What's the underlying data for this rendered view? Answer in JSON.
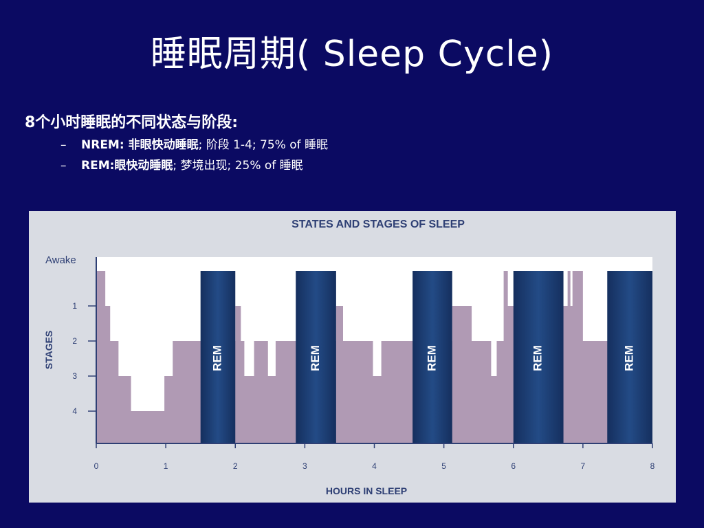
{
  "slide": {
    "title": "睡眠周期( Sleep Cycle)",
    "subtitle": "8个小时睡眠的不同状态与阶段:",
    "bullets": [
      {
        "dash": "–",
        "bold": "NREM: 非眼快动睡眠",
        "rest": "; 阶段 1-4; 75% of 睡眠"
      },
      {
        "dash": "–",
        "bold": "REM:眼快动睡眠",
        "rest": "; 梦境出现; 25% of 睡眠"
      }
    ]
  },
  "colors": {
    "background": "#0b0a62",
    "nrem_fill": "#b09ab4",
    "rem_fill": "#1e4580",
    "rem_edge": "#152f5e",
    "figure_bg": "#d9dce3",
    "plot_bg": "#ffffff",
    "axis": "#2e3f74"
  },
  "chart_data": {
    "type": "area",
    "title": "STATES AND STAGES OF SLEEP",
    "xlabel": "HOURS IN SLEEP",
    "ylabel": "STAGES",
    "xlim": [
      0,
      8
    ],
    "x_ticks": [
      "0",
      "1",
      "2",
      "3",
      "4",
      "5",
      "6",
      "7",
      "8"
    ],
    "y_categories": [
      "Awake",
      "1",
      "2",
      "3",
      "4"
    ],
    "nrem_hypnogram": [
      [
        0,
        0.6
      ],
      [
        0.13,
        1
      ],
      [
        0.2,
        2
      ],
      [
        0.32,
        3
      ],
      [
        0.5,
        4
      ],
      [
        0.98,
        3
      ],
      [
        1.1,
        2
      ],
      [
        2.0,
        1
      ],
      [
        2.08,
        2
      ],
      [
        2.13,
        3
      ],
      [
        2.27,
        2
      ],
      [
        2.47,
        3
      ],
      [
        2.58,
        2
      ],
      [
        3.45,
        1
      ],
      [
        3.55,
        2
      ],
      [
        3.98,
        3
      ],
      [
        4.1,
        2
      ],
      [
        5.12,
        1
      ],
      [
        5.4,
        2
      ],
      [
        5.68,
        3
      ],
      [
        5.76,
        2
      ],
      [
        5.86,
        0.6
      ],
      [
        5.92,
        1
      ],
      [
        6.72,
        1
      ],
      [
        6.78,
        0.6
      ],
      [
        6.82,
        1
      ],
      [
        6.85,
        0.6
      ],
      [
        7.0,
        2
      ],
      [
        7.35,
        2
      ]
    ],
    "rem_periods": [
      {
        "label": "REM",
        "start": 1.5,
        "end": 2.0
      },
      {
        "label": "REM",
        "start": 2.87,
        "end": 3.45
      },
      {
        "label": "REM",
        "start": 4.55,
        "end": 5.12
      },
      {
        "label": "REM",
        "start": 6.0,
        "end": 6.72
      },
      {
        "label": "REM",
        "start": 7.35,
        "end": 8.0
      }
    ]
  }
}
